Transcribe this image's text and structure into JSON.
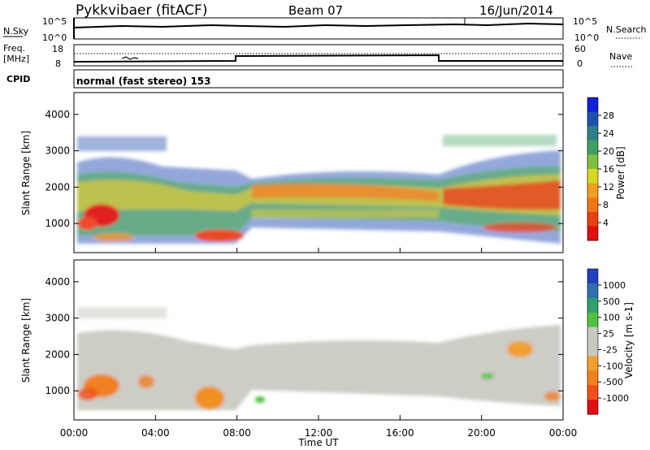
{
  "header": {
    "station": "Pykkvibaer (fitACF)",
    "beam": "Beam 07",
    "date": "16/Jun/2014"
  },
  "top_panels": {
    "nsky_label": "N.Sky",
    "nsearch_label": "N.Search",
    "nsky_ticks": [
      "10^5",
      "10^0"
    ],
    "nsearch_ticks": [
      "10^5",
      "10^0"
    ],
    "freq_label_1": "Freq.",
    "freq_label_2": "[MHz]",
    "freq_ticks": [
      "18",
      "8"
    ],
    "nave_label": "Nave",
    "nave_ticks": [
      "60",
      "0"
    ],
    "cpid_label": "CPID",
    "cpid_text": "normal (fast stereo) 153"
  },
  "chart_data": [
    {
      "type": "heatmap",
      "name": "power",
      "ylabel": "Slant Range [km]",
      "y_ticks": [
        1000,
        2000,
        3000,
        4000
      ],
      "ylim": [
        200,
        4600
      ],
      "colorbar_label": "Power [dB]",
      "colorbar_ticks": [
        4,
        8,
        12,
        16,
        20,
        24,
        28
      ],
      "colorbar_colors": [
        "#1020d8",
        "#1f4fb0",
        "#2f7f8a",
        "#3f9f62",
        "#7fc040",
        "#d8d820",
        "#f0a020",
        "#f07818",
        "#e84010",
        "#e01010"
      ]
    },
    {
      "type": "heatmap",
      "name": "velocity",
      "ylabel": "Slant Range [km]",
      "y_ticks": [
        1000,
        2000,
        3000,
        4000
      ],
      "ylim": [
        200,
        4600
      ],
      "colorbar_label": "Velocity [m s-1]",
      "colorbar_ticks": [
        "1000",
        "500",
        "100",
        "25",
        "-25",
        "-100",
        "-500",
        "-1000"
      ],
      "colorbar_colors": [
        "#2040c0",
        "#2f6fb0",
        "#2f9f70",
        "#50c040",
        "#c8c8c0",
        "#c8c8c0",
        "#f0a030",
        "#f08020",
        "#f05018",
        "#e01010"
      ],
      "xlabel": "Time UT",
      "x_ticks": [
        "00:00",
        "04:00",
        "08:00",
        "12:00",
        "16:00",
        "20:00",
        "00:00"
      ]
    }
  ]
}
